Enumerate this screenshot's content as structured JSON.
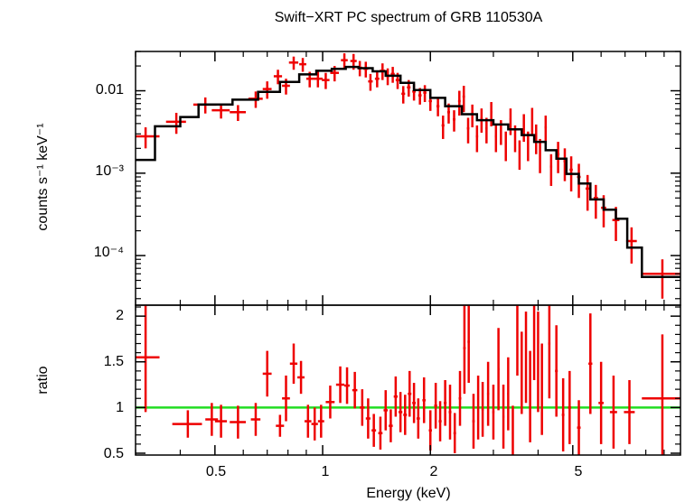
{
  "chart_data": [
    {
      "type": "scatter",
      "title": "Swift−XRT PC spectrum of GRB 110530A",
      "ylabel": "counts s⁻¹ keV⁻¹",
      "xlabel": "",
      "xscale": "log",
      "yscale": "log",
      "xlim": [
        0.3,
        10
      ],
      "ylim": [
        2.5e-05,
        0.03
      ],
      "x_ticklabels": [],
      "y_ticks": [
        {
          "value": 0.01,
          "label": "0.01"
        },
        {
          "value": 0.001,
          "label": "10⁻³"
        },
        {
          "value": 0.0001,
          "label": "10⁻⁴"
        }
      ],
      "colors": {
        "data": "#ee0000",
        "model": "#000000"
      },
      "model_steps": [
        [
          0.3,
          0.34,
          0.00145
        ],
        [
          0.34,
          0.4,
          0.0037
        ],
        [
          0.4,
          0.45,
          0.0048
        ],
        [
          0.45,
          0.56,
          0.0068
        ],
        [
          0.56,
          0.66,
          0.0078
        ],
        [
          0.66,
          0.76,
          0.0097
        ],
        [
          0.76,
          0.86,
          0.0128
        ],
        [
          0.86,
          0.96,
          0.0158
        ],
        [
          0.96,
          1.06,
          0.0175
        ],
        [
          1.06,
          1.16,
          0.0185
        ],
        [
          1.16,
          1.26,
          0.0195
        ],
        [
          1.26,
          1.38,
          0.0188
        ],
        [
          1.38,
          1.5,
          0.0172
        ],
        [
          1.5,
          1.65,
          0.0152
        ],
        [
          1.65,
          1.8,
          0.0125
        ],
        [
          1.8,
          2.0,
          0.0102
        ],
        [
          2.0,
          2.2,
          0.0082
        ],
        [
          2.2,
          2.45,
          0.0065
        ],
        [
          2.45,
          2.7,
          0.0052
        ],
        [
          2.7,
          3.0,
          0.0044
        ],
        [
          3.0,
          3.3,
          0.0039
        ],
        [
          3.3,
          3.6,
          0.0034
        ],
        [
          3.6,
          3.9,
          0.0029
        ],
        [
          3.9,
          4.2,
          0.0024
        ],
        [
          4.2,
          4.5,
          0.0019
        ],
        [
          4.5,
          4.8,
          0.0015
        ],
        [
          4.8,
          5.2,
          0.00098
        ],
        [
          5.2,
          5.6,
          0.00075
        ],
        [
          5.6,
          6.1,
          0.00048
        ],
        [
          6.1,
          6.6,
          0.00036
        ],
        [
          6.6,
          7.1,
          0.00028
        ],
        [
          7.1,
          7.8,
          0.000125
        ],
        [
          7.8,
          10,
          5.5e-05
        ]
      ],
      "points": [
        [
          0.32,
          0.0028,
          0.03,
          0.0008
        ],
        [
          0.39,
          0.0042,
          0.025,
          0.0012
        ],
        [
          0.47,
          0.0068,
          0.035,
          0.0015
        ],
        [
          0.52,
          0.0058,
          0.03,
          0.0012
        ],
        [
          0.58,
          0.0055,
          0.03,
          0.0012
        ],
        [
          0.65,
          0.008,
          0.03,
          0.0018
        ],
        [
          0.7,
          0.0105,
          0.02,
          0.0025
        ],
        [
          0.75,
          0.015,
          0.02,
          0.003
        ],
        [
          0.79,
          0.0115,
          0.02,
          0.0025
        ],
        [
          0.83,
          0.022,
          0.025,
          0.004
        ],
        [
          0.88,
          0.021,
          0.02,
          0.004
        ],
        [
          0.92,
          0.014,
          0.02,
          0.003
        ],
        [
          0.97,
          0.014,
          0.03,
          0.003
        ],
        [
          1.02,
          0.0135,
          0.025,
          0.003
        ],
        [
          1.08,
          0.0165,
          0.03,
          0.0035
        ],
        [
          1.15,
          0.0235,
          0.025,
          0.005
        ],
        [
          1.22,
          0.023,
          0.025,
          0.005
        ],
        [
          1.27,
          0.019,
          0.02,
          0.004
        ],
        [
          1.32,
          0.0185,
          0.02,
          0.004
        ],
        [
          1.36,
          0.013,
          0.02,
          0.003
        ],
        [
          1.42,
          0.014,
          0.02,
          0.003
        ],
        [
          1.47,
          0.0175,
          0.025,
          0.004
        ],
        [
          1.52,
          0.0152,
          0.02,
          0.0035
        ],
        [
          1.57,
          0.016,
          0.02,
          0.0035
        ],
        [
          1.62,
          0.0135,
          0.02,
          0.003
        ],
        [
          1.68,
          0.0092,
          0.02,
          0.0022
        ],
        [
          1.74,
          0.011,
          0.02,
          0.0025
        ],
        [
          1.8,
          0.0098,
          0.02,
          0.0022
        ],
        [
          1.87,
          0.0088,
          0.02,
          0.002
        ],
        [
          1.93,
          0.0095,
          0.02,
          0.0022
        ],
        [
          2.0,
          0.0075,
          0.02,
          0.0018
        ],
        [
          2.1,
          0.0065,
          0.02,
          0.0016
        ],
        [
          2.17,
          0.0038,
          0.02,
          0.0012
        ],
        [
          2.25,
          0.0055,
          0.02,
          0.0015
        ],
        [
          2.33,
          0.0045,
          0.02,
          0.0013
        ],
        [
          2.41,
          0.0075,
          0.02,
          0.0025
        ],
        [
          2.48,
          0.0085,
          0.02,
          0.003
        ],
        [
          2.55,
          0.0035,
          0.02,
          0.0012
        ],
        [
          2.62,
          0.0052,
          0.02,
          0.0016
        ],
        [
          2.7,
          0.0028,
          0.02,
          0.001
        ],
        [
          2.78,
          0.0046,
          0.02,
          0.0015
        ],
        [
          2.87,
          0.0035,
          0.02,
          0.0012
        ],
        [
          2.96,
          0.0055,
          0.02,
          0.0018
        ],
        [
          3.05,
          0.0028,
          0.02,
          0.001
        ],
        [
          3.15,
          0.0033,
          0.02,
          0.0011
        ],
        [
          3.25,
          0.0023,
          0.02,
          0.0009
        ],
        [
          3.35,
          0.0045,
          0.02,
          0.0016
        ],
        [
          3.45,
          0.0028,
          0.02,
          0.001
        ],
        [
          3.55,
          0.0018,
          0.02,
          0.0007
        ],
        [
          3.65,
          0.0038,
          0.02,
          0.0014
        ],
        [
          3.75,
          0.0023,
          0.02,
          0.0009
        ],
        [
          3.85,
          0.0045,
          0.02,
          0.0017
        ],
        [
          3.95,
          0.0028,
          0.02,
          0.0011
        ],
        [
          4.05,
          0.0018,
          0.02,
          0.0008
        ],
        [
          4.2,
          0.0036,
          0.03,
          0.0014
        ],
        [
          4.35,
          0.0012,
          0.03,
          0.0005
        ],
        [
          4.55,
          0.0017,
          0.04,
          0.0007
        ],
        [
          4.75,
          0.0014,
          0.04,
          0.0006
        ],
        [
          4.95,
          0.0011,
          0.05,
          0.0005
        ],
        [
          5.2,
          0.0009,
          0.06,
          0.0004
        ],
        [
          5.5,
          0.00065,
          0.07,
          0.0003
        ],
        [
          5.8,
          0.0005,
          0.08,
          0.00022
        ],
        [
          6.1,
          0.00038,
          0.1,
          0.00016
        ],
        [
          6.6,
          0.00027,
          0.15,
          0.00012
        ],
        [
          7.3,
          0.00015,
          0.25,
          7e-05
        ],
        [
          8.9,
          6e-05,
          1.1,
          3e-05
        ]
      ]
    },
    {
      "type": "scatter",
      "title": "",
      "xlabel": "Energy (keV)",
      "ylabel": "ratio",
      "xscale": "log",
      "yscale": "linear",
      "xlim": [
        0.3,
        10
      ],
      "ylim": [
        0.48,
        2.12
      ],
      "x_ticks": [
        {
          "value": 0.5,
          "label": "0.5"
        },
        {
          "value": 1,
          "label": "1"
        },
        {
          "value": 2,
          "label": "2"
        },
        {
          "value": 5,
          "label": "5"
        }
      ],
      "y_ticks": [
        {
          "value": 0.5,
          "label": "0.5"
        },
        {
          "value": 1,
          "label": "1"
        },
        {
          "value": 1.5,
          "label": "1.5"
        },
        {
          "value": 2,
          "label": "2"
        }
      ],
      "reference_line": 1,
      "colors": {
        "data": "#ee0000",
        "reference": "#22dd22"
      },
      "points": [
        [
          0.32,
          1.55,
          0.03,
          0.6
        ],
        [
          0.42,
          0.82,
          0.04,
          0.15
        ],
        [
          0.49,
          0.87,
          0.02,
          0.18
        ],
        [
          0.52,
          0.85,
          0.02,
          0.18
        ],
        [
          0.58,
          0.84,
          0.03,
          0.18
        ],
        [
          0.65,
          0.87,
          0.02,
          0.18
        ],
        [
          0.7,
          1.37,
          0.02,
          0.25
        ],
        [
          0.76,
          0.8,
          0.02,
          0.12
        ],
        [
          0.79,
          1.1,
          0.02,
          0.25
        ],
        [
          0.83,
          1.48,
          0.02,
          0.22
        ],
        [
          0.87,
          1.33,
          0.02,
          0.18
        ],
        [
          0.91,
          0.85,
          0.02,
          0.18
        ],
        [
          0.95,
          0.82,
          0.02,
          0.18
        ],
        [
          0.99,
          0.85,
          0.02,
          0.18
        ],
        [
          1.05,
          1.06,
          0.03,
          0.18
        ],
        [
          1.12,
          1.25,
          0.03,
          0.2
        ],
        [
          1.17,
          1.24,
          0.02,
          0.2
        ],
        [
          1.23,
          1.19,
          0.02,
          0.2
        ],
        [
          1.29,
          1.0,
          0.02,
          0.2
        ],
        [
          1.34,
          0.88,
          0.02,
          0.22
        ],
        [
          1.39,
          0.75,
          0.02,
          0.18
        ],
        [
          1.45,
          0.72,
          0.02,
          0.18
        ],
        [
          1.5,
          0.97,
          0.02,
          0.22
        ],
        [
          1.55,
          0.8,
          0.02,
          0.18
        ],
        [
          1.6,
          1.12,
          0.02,
          0.22
        ],
        [
          1.65,
          0.95,
          0.02,
          0.22
        ],
        [
          1.7,
          0.92,
          0.02,
          0.22
        ],
        [
          1.75,
          1.15,
          0.02,
          0.25
        ],
        [
          1.8,
          1.05,
          0.02,
          0.22
        ],
        [
          1.85,
          0.88,
          0.02,
          0.22
        ],
        [
          1.92,
          1.08,
          0.02,
          0.25
        ],
        [
          2.0,
          0.75,
          0.02,
          0.22
        ],
        [
          2.07,
          1.02,
          0.02,
          0.25
        ],
        [
          2.13,
          0.85,
          0.02,
          0.22
        ],
        [
          2.2,
          1.05,
          0.02,
          0.25
        ],
        [
          2.27,
          0.95,
          0.02,
          0.3
        ],
        [
          2.34,
          0.72,
          0.02,
          0.22
        ],
        [
          2.42,
          1.1,
          0.02,
          0.3
        ],
        [
          2.49,
          1.65,
          0.02,
          0.5
        ],
        [
          2.56,
          1.72,
          0.02,
          0.45
        ],
        [
          2.64,
          0.85,
          0.02,
          0.3
        ],
        [
          2.72,
          1.0,
          0.02,
          0.35
        ],
        [
          2.8,
          0.98,
          0.02,
          0.3
        ],
        [
          2.9,
          1.15,
          0.02,
          0.35
        ],
        [
          3.0,
          0.95,
          0.02,
          0.3
        ],
        [
          3.1,
          1.42,
          0.02,
          0.45
        ],
        [
          3.2,
          0.9,
          0.02,
          0.35
        ],
        [
          3.3,
          1.15,
          0.02,
          0.4
        ],
        [
          3.4,
          0.72,
          0.02,
          0.3
        ],
        [
          3.5,
          1.85,
          0.02,
          0.5
        ],
        [
          3.6,
          1.38,
          0.02,
          0.45
        ],
        [
          3.7,
          1.55,
          0.02,
          0.5
        ],
        [
          3.8,
          1.12,
          0.02,
          0.5
        ],
        [
          3.9,
          1.85,
          0.02,
          0.55
        ],
        [
          4.0,
          1.5,
          0.02,
          0.55
        ],
        [
          4.1,
          1.2,
          0.02,
          0.5
        ],
        [
          4.3,
          1.7,
          0.03,
          0.6
        ],
        [
          4.5,
          1.4,
          0.04,
          0.5
        ],
        [
          4.7,
          0.92,
          0.04,
          0.4
        ],
        [
          4.9,
          1.0,
          0.05,
          0.4
        ],
        [
          5.2,
          0.78,
          0.06,
          0.3
        ],
        [
          5.6,
          1.48,
          0.07,
          0.55
        ],
        [
          6.0,
          1.05,
          0.1,
          0.45
        ],
        [
          6.5,
          0.95,
          0.15,
          0.4
        ],
        [
          7.2,
          0.95,
          0.25,
          0.35
        ],
        [
          8.9,
          1.1,
          1.1,
          0.7
        ]
      ]
    }
  ]
}
